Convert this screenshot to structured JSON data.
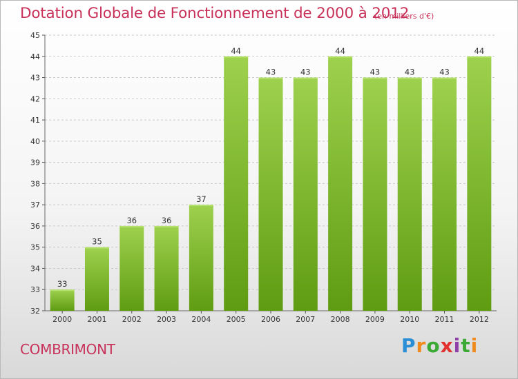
{
  "header": {
    "title": "Dotation Globale de Fonctionnement de 2000 à 2012",
    "unit_note": "(en milliers d'€)"
  },
  "footer": {
    "town": "COMBRIMONT",
    "logo_text": "Proxiti"
  },
  "colors": {
    "accent": "#c8325a",
    "bar_top": "#9ed14e",
    "bar_bottom": "#5f9c12",
    "grid": "#c9c9c9"
  },
  "chart_data": {
    "type": "bar",
    "title": "Dotation Globale de Fonctionnement de 2000 à 2012",
    "subtitle": "(en milliers d'€)",
    "xlabel": "",
    "ylabel": "",
    "categories": [
      "2000",
      "2001",
      "2002",
      "2003",
      "2004",
      "2005",
      "2006",
      "2007",
      "2008",
      "2009",
      "2010",
      "2011",
      "2012"
    ],
    "values": [
      33,
      35,
      36,
      36,
      37,
      44,
      43,
      43,
      44,
      43,
      43,
      43,
      44
    ],
    "ylim": [
      32,
      45
    ],
    "yticks": [
      "32",
      "33",
      "34",
      "35",
      "36",
      "37",
      "38",
      "39",
      "40",
      "41",
      "42",
      "43",
      "44",
      "45"
    ],
    "grid": true,
    "legend": "none"
  }
}
